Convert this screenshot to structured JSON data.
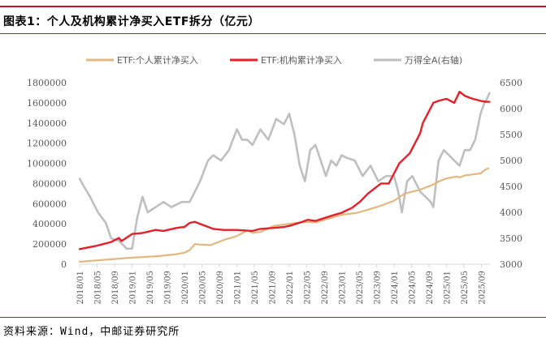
{
  "figure": {
    "title": "图表1：个人及机构累计净买入ETF拆分（亿元）",
    "source": "资料来源：Wind，中邮证券研究所"
  },
  "colors": {
    "accent": "#c8102e",
    "individual": "#e3b77f",
    "institution": "#e5202a",
    "index": "#bfbfbf",
    "axis": "#d9d9d9"
  },
  "chart_data": {
    "type": "line",
    "title": "图表1：个人及机构累计净买入ETF拆分（亿元）",
    "xlabel": "",
    "ylabel": "",
    "ylim": [
      0,
      1800000
    ],
    "y_ticks": [
      "0",
      "200000",
      "400000",
      "600000",
      "800000",
      "1000000",
      "1200000",
      "1400000",
      "1600000",
      "1800000"
    ],
    "y2lim": [
      3000,
      6500
    ],
    "y2_ticks": [
      "3000",
      "3500",
      "4000",
      "4500",
      "5000",
      "5500",
      "6000",
      "6500"
    ],
    "x_ticks": [
      "2018/01",
      "2018/05",
      "2018/09",
      "2019/01",
      "2019/05",
      "2019/09",
      "2020/01",
      "2020/05",
      "2020/09",
      "2021/01",
      "2021/05",
      "2021/09",
      "2022/01",
      "2022/05",
      "2022/09",
      "2023/01",
      "2023/05",
      "2023/09",
      "2024/01",
      "2024/05",
      "2024/09",
      "2025/01",
      "2025/05",
      "2025/09"
    ],
    "x_range": [
      2018.0,
      2025.83
    ],
    "legend_position": "top",
    "series": [
      {
        "name": "ETF:个人累计净买入",
        "axis": "left",
        "x": [
          2018.0,
          2018.5,
          2019.0,
          2019.5,
          2019.85,
          2020.0,
          2020.1,
          2020.2,
          2020.3,
          2020.5,
          2020.75,
          2021.0,
          2021.2,
          2021.3,
          2021.45,
          2021.7,
          2022.0,
          2022.3,
          2022.5,
          2022.8,
          2023.0,
          2023.3,
          2023.5,
          2023.75,
          2024.0,
          2024.2,
          2024.5,
          2024.75,
          2024.85,
          2025.0,
          2025.2,
          2025.25,
          2025.35,
          2025.5,
          2025.65,
          2025.75,
          2025.8
        ],
        "values": [
          25000,
          45000,
          65000,
          80000,
          100000,
          115000,
          140000,
          200000,
          195000,
          190000,
          240000,
          280000,
          335000,
          310000,
          320000,
          380000,
          400000,
          420000,
          415000,
          460000,
          490000,
          510000,
          540000,
          580000,
          630000,
          700000,
          740000,
          790000,
          820000,
          850000,
          870000,
          860000,
          880000,
          890000,
          900000,
          940000,
          950000
        ]
      },
      {
        "name": "ETF:机构累计净买入",
        "axis": "left",
        "x": [
          2018.0,
          2018.3,
          2018.6,
          2018.75,
          2018.8,
          2019.0,
          2019.2,
          2019.45,
          2019.6,
          2019.85,
          2020.0,
          2020.1,
          2020.2,
          2020.3,
          2020.55,
          2020.75,
          2021.0,
          2021.3,
          2021.45,
          2021.7,
          2021.9,
          2022.0,
          2022.25,
          2022.35,
          2022.5,
          2022.8,
          2023.0,
          2023.2,
          2023.35,
          2023.5,
          2023.75,
          2023.9,
          2024.0,
          2024.05,
          2024.1,
          2024.2,
          2024.3,
          2024.4,
          2024.5,
          2024.55,
          2024.65,
          2024.75,
          2024.85,
          2025.0,
          2025.15,
          2025.25,
          2025.35,
          2025.5,
          2025.65,
          2025.75,
          2025.82
        ],
        "values": [
          150000,
          180000,
          220000,
          260000,
          230000,
          300000,
          310000,
          340000,
          330000,
          360000,
          370000,
          410000,
          420000,
          400000,
          350000,
          340000,
          340000,
          330000,
          350000,
          360000,
          370000,
          380000,
          420000,
          440000,
          430000,
          480000,
          510000,
          560000,
          620000,
          700000,
          800000,
          800000,
          900000,
          950000,
          1000000,
          1050000,
          1100000,
          1200000,
          1300000,
          1400000,
          1500000,
          1600000,
          1620000,
          1640000,
          1600000,
          1710000,
          1670000,
          1640000,
          1620000,
          1610000,
          1610000
        ]
      },
      {
        "name": "万得全A(右轴)",
        "axis": "right",
        "x": [
          2018.0,
          2018.08,
          2018.2,
          2018.35,
          2018.5,
          2018.6,
          2018.75,
          2018.9,
          2019.0,
          2019.1,
          2019.2,
          2019.3,
          2019.45,
          2019.6,
          2019.75,
          2019.95,
          2020.1,
          2020.2,
          2020.3,
          2020.45,
          2020.55,
          2020.7,
          2020.85,
          2021.0,
          2021.1,
          2021.2,
          2021.3,
          2021.45,
          2021.6,
          2021.75,
          2021.9,
          2022.0,
          2022.1,
          2022.2,
          2022.3,
          2022.4,
          2022.5,
          2022.6,
          2022.7,
          2022.8,
          2022.9,
          2023.0,
          2023.1,
          2023.25,
          2023.4,
          2023.55,
          2023.7,
          2023.85,
          2024.0,
          2024.08,
          2024.15,
          2024.25,
          2024.35,
          2024.5,
          2024.6,
          2024.7,
          2024.75,
          2024.85,
          2024.95,
          2025.05,
          2025.15,
          2025.25,
          2025.35,
          2025.45,
          2025.55,
          2025.65,
          2025.72,
          2025.78,
          2025.82
        ],
        "values": [
          4650,
          4500,
          4300,
          4000,
          3800,
          3500,
          3450,
          3300,
          3300,
          3900,
          4300,
          4000,
          4100,
          4200,
          4100,
          4200,
          4200,
          4400,
          4600,
          5000,
          5100,
          5000,
          5200,
          5600,
          5400,
          5400,
          5300,
          5600,
          5400,
          5800,
          5700,
          5900,
          5500,
          4900,
          4600,
          5200,
          5300,
          5000,
          4700,
          5000,
          4900,
          5100,
          5050,
          5000,
          4700,
          4900,
          4600,
          4700,
          4700,
          4400,
          4000,
          4600,
          4700,
          4400,
          4300,
          4200,
          4100,
          5000,
          5200,
          5100,
          5000,
          4900,
          5200,
          5200,
          5400,
          5900,
          6100,
          6200,
          6300
        ]
      }
    ]
  }
}
